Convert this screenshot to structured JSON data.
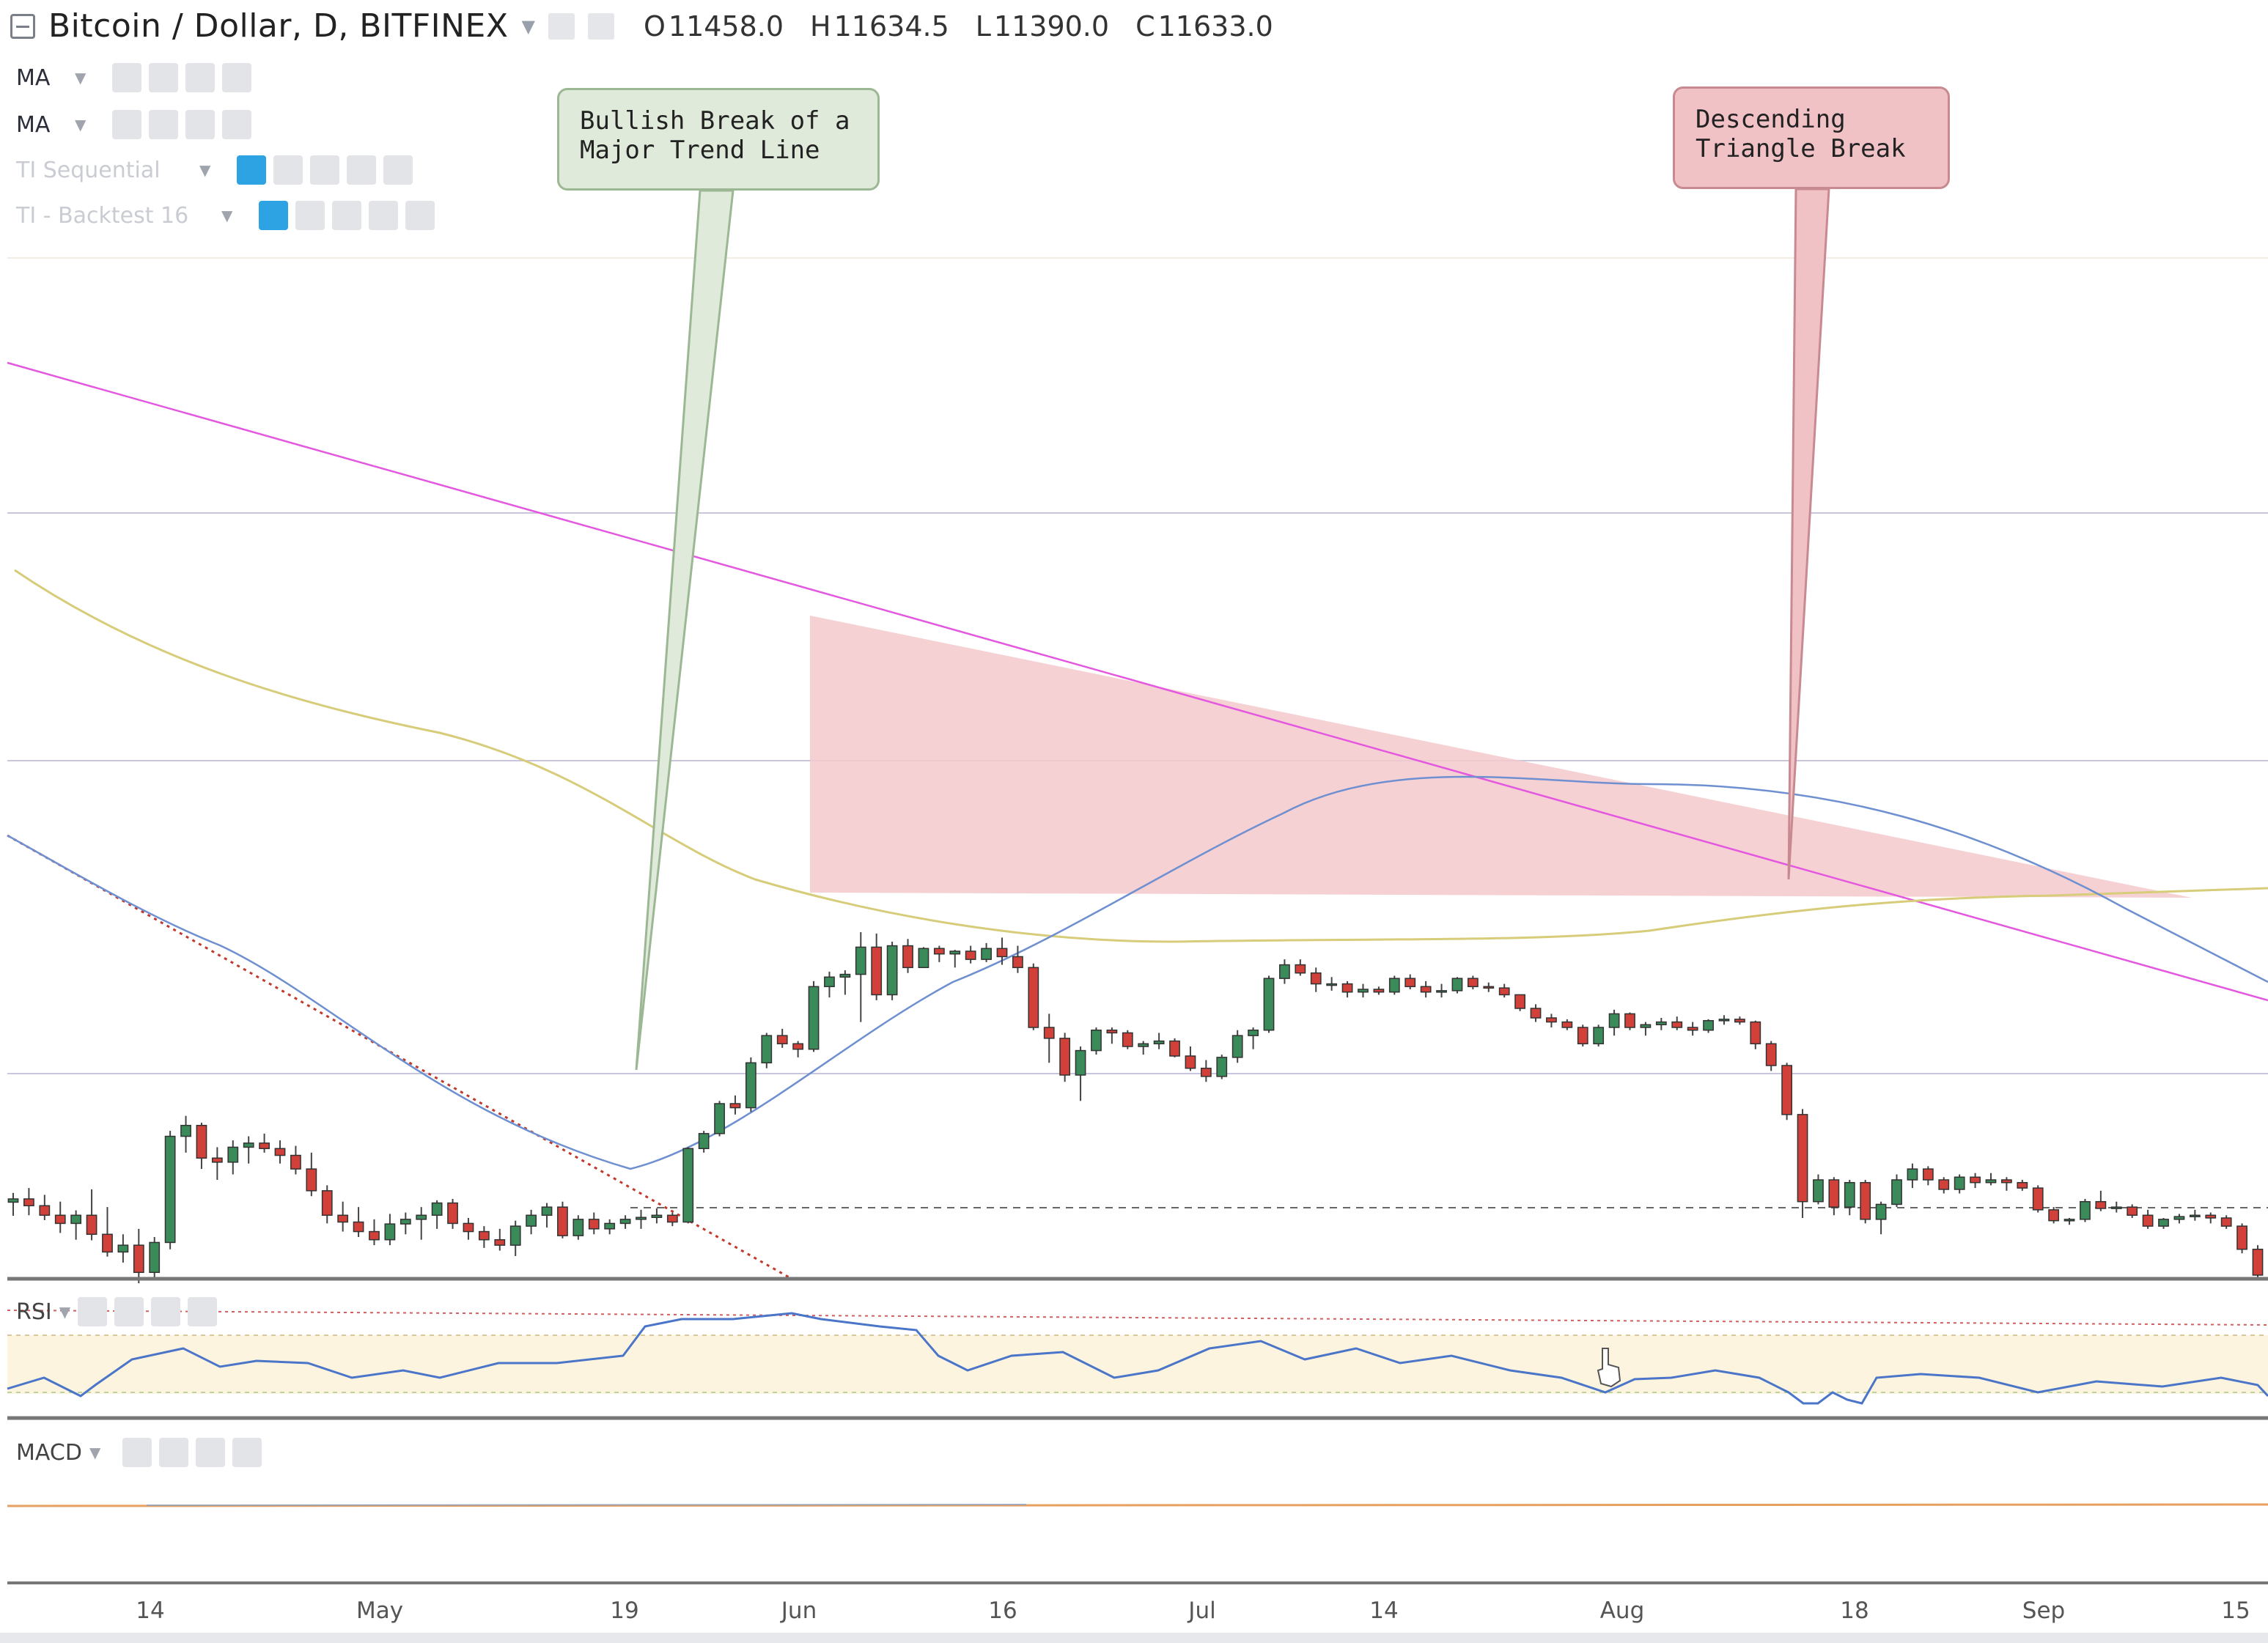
{
  "header": {
    "symbol_title": "Bitcoin / Dollar, D, BITFINEX",
    "ohlc": {
      "open_label": "O",
      "open": "11458.0",
      "high_label": "H",
      "high": "11634.5",
      "low_label": "L",
      "low": "11390.0",
      "close_label": "C",
      "close": "11633.0"
    }
  },
  "indicators": [
    {
      "name": "MA",
      "state": "active"
    },
    {
      "name": "MA",
      "state": "active"
    },
    {
      "name": "TI Sequential",
      "state": "faded"
    },
    {
      "name": "TI - Backtest 16",
      "state": "faded"
    }
  ],
  "annotations": {
    "bullish": {
      "line1": "Bullish Break of a",
      "line2": "Major Trend Line"
    },
    "descending": {
      "line1": "Descending",
      "line2": "Triangle Break"
    }
  },
  "panes": {
    "rsi_label": "RSI",
    "macd_label": "MACD"
  },
  "x_axis_ticks": [
    "14",
    "May",
    "19",
    "Jun",
    "16",
    "Jul",
    "14",
    "Aug",
    "18",
    "Sep",
    "15"
  ],
  "colors": {
    "up": "#3a8a5a",
    "down": "#d2403a",
    "triangle_fill": "#f4c9cc",
    "trend_magenta": "#e458e0",
    "ma_blue": "#6e8fd0",
    "ma_yellow": "#d7cc7a",
    "rsi_line": "#4a75c8",
    "rsi_band": "#fdf4df"
  },
  "chart_data": {
    "type": "candlestick",
    "x_start": "2017-04-07",
    "x_end": "2017-09-16",
    "note": "",
    "ylim": [
      2250,
      4700
    ],
    "ohlc": [
      [
        2518,
        2552,
        2468,
        2530
      ],
      [
        2530,
        2570,
        2470,
        2505
      ],
      [
        2505,
        2545,
        2452,
        2470
      ],
      [
        2470,
        2520,
        2405,
        2440
      ],
      [
        2440,
        2488,
        2380,
        2470
      ],
      [
        2470,
        2565,
        2378,
        2400
      ],
      [
        2400,
        2500,
        2318,
        2335
      ],
      [
        2335,
        2400,
        2296,
        2360
      ],
      [
        2360,
        2420,
        2220,
        2260
      ],
      [
        2260,
        2390,
        2230,
        2370
      ],
      [
        2370,
        2780,
        2345,
        2760
      ],
      [
        2760,
        2835,
        2700,
        2800
      ],
      [
        2800,
        2810,
        2640,
        2680
      ],
      [
        2680,
        2720,
        2600,
        2665
      ],
      [
        2665,
        2745,
        2620,
        2720
      ],
      [
        2720,
        2760,
        2660,
        2735
      ],
      [
        2735,
        2770,
        2700,
        2715
      ],
      [
        2715,
        2745,
        2660,
        2690
      ],
      [
        2690,
        2725,
        2620,
        2640
      ],
      [
        2640,
        2700,
        2540,
        2560
      ],
      [
        2560,
        2580,
        2440,
        2470
      ],
      [
        2470,
        2520,
        2410,
        2445
      ],
      [
        2445,
        2500,
        2390,
        2410
      ],
      [
        2410,
        2455,
        2360,
        2380
      ],
      [
        2380,
        2475,
        2360,
        2438
      ],
      [
        2438,
        2480,
        2400,
        2455
      ],
      [
        2455,
        2500,
        2380,
        2470
      ],
      [
        2470,
        2525,
        2420,
        2515
      ],
      [
        2515,
        2530,
        2420,
        2440
      ],
      [
        2440,
        2460,
        2380,
        2410
      ],
      [
        2410,
        2430,
        2350,
        2380
      ],
      [
        2380,
        2420,
        2340,
        2360
      ],
      [
        2360,
        2450,
        2320,
        2430
      ],
      [
        2430,
        2490,
        2400,
        2470
      ],
      [
        2470,
        2515,
        2425,
        2500
      ],
      [
        2500,
        2520,
        2385,
        2395
      ],
      [
        2395,
        2470,
        2380,
        2455
      ],
      [
        2455,
        2480,
        2400,
        2420
      ],
      [
        2420,
        2455,
        2400,
        2440
      ],
      [
        2440,
        2470,
        2420,
        2455
      ],
      [
        2455,
        2490,
        2420,
        2462
      ],
      [
        2462,
        2495,
        2440,
        2470
      ],
      [
        2470,
        2480,
        2430,
        2445
      ],
      [
        2445,
        2720,
        2440,
        2715
      ],
      [
        2715,
        2780,
        2700,
        2770
      ],
      [
        2770,
        2890,
        2760,
        2880
      ],
      [
        2880,
        2910,
        2840,
        2865
      ],
      [
        2865,
        3050,
        2850,
        3030
      ],
      [
        3030,
        3140,
        3010,
        3130
      ],
      [
        3130,
        3155,
        3085,
        3100
      ],
      [
        3100,
        3110,
        3050,
        3080
      ],
      [
        3080,
        3330,
        3070,
        3310
      ],
      [
        3310,
        3365,
        3270,
        3345
      ],
      [
        3345,
        3370,
        3280,
        3355
      ],
      [
        3355,
        3510,
        3180,
        3455
      ],
      [
        3455,
        3505,
        3260,
        3280
      ],
      [
        3280,
        3475,
        3260,
        3460
      ],
      [
        3460,
        3485,
        3360,
        3380
      ],
      [
        3380,
        3455,
        3380,
        3450
      ],
      [
        3450,
        3460,
        3400,
        3430
      ],
      [
        3430,
        3445,
        3380,
        3440
      ],
      [
        3440,
        3460,
        3395,
        3410
      ],
      [
        3410,
        3470,
        3400,
        3450
      ],
      [
        3450,
        3490,
        3390,
        3420
      ],
      [
        3420,
        3460,
        3360,
        3380
      ],
      [
        3380,
        3395,
        3150,
        3160
      ],
      [
        3160,
        3210,
        3030,
        3120
      ],
      [
        3120,
        3140,
        2960,
        2985
      ],
      [
        2985,
        3090,
        2890,
        3075
      ],
      [
        3075,
        3160,
        3060,
        3150
      ],
      [
        3150,
        3160,
        3100,
        3140
      ],
      [
        3140,
        3150,
        3080,
        3090
      ],
      [
        3090,
        3110,
        3060,
        3100
      ],
      [
        3100,
        3140,
        3080,
        3110
      ],
      [
        3110,
        3120,
        3050,
        3055
      ],
      [
        3055,
        3090,
        3000,
        3010
      ],
      [
        3010,
        3040,
        2960,
        2980
      ],
      [
        2980,
        3060,
        2970,
        3050
      ],
      [
        3050,
        3150,
        3030,
        3130
      ],
      [
        3130,
        3160,
        3080,
        3150
      ],
      [
        3150,
        3350,
        3140,
        3340
      ],
      [
        3340,
        3410,
        3320,
        3390
      ],
      [
        3390,
        3410,
        3350,
        3360
      ],
      [
        3360,
        3380,
        3290,
        3320
      ],
      [
        3320,
        3345,
        3295,
        3320
      ],
      [
        3320,
        3330,
        3270,
        3290
      ],
      [
        3290,
        3320,
        3270,
        3300
      ],
      [
        3300,
        3310,
        3280,
        3290
      ],
      [
        3290,
        3350,
        3280,
        3340
      ],
      [
        3340,
        3355,
        3300,
        3310
      ],
      [
        3310,
        3330,
        3270,
        3290
      ],
      [
        3290,
        3320,
        3270,
        3295
      ],
      [
        3295,
        3345,
        3285,
        3340
      ],
      [
        3340,
        3350,
        3300,
        3310
      ],
      [
        3310,
        3325,
        3290,
        3305
      ],
      [
        3305,
        3320,
        3270,
        3280
      ],
      [
        3280,
        3270,
        3220,
        3230
      ],
      [
        3230,
        3245,
        3180,
        3195
      ],
      [
        3195,
        3210,
        3160,
        3180
      ],
      [
        3180,
        3190,
        3150,
        3160
      ],
      [
        3160,
        3170,
        3090,
        3100
      ],
      [
        3100,
        3170,
        3090,
        3160
      ],
      [
        3160,
        3225,
        3130,
        3210
      ],
      [
        3210,
        3215,
        3150,
        3160
      ],
      [
        3160,
        3180,
        3130,
        3170
      ],
      [
        3170,
        3195,
        3150,
        3180
      ],
      [
        3180,
        3200,
        3150,
        3160
      ],
      [
        3160,
        3180,
        3130,
        3150
      ],
      [
        3150,
        3190,
        3140,
        3185
      ],
      [
        3185,
        3205,
        3170,
        3190
      ],
      [
        3190,
        3200,
        3170,
        3180
      ],
      [
        3180,
        3185,
        3080,
        3100
      ],
      [
        3100,
        3110,
        3000,
        3020
      ],
      [
        3020,
        3030,
        2820,
        2840
      ],
      [
        2840,
        2860,
        2460,
        2520
      ],
      [
        2520,
        2620,
        2510,
        2600
      ],
      [
        2600,
        2610,
        2470,
        2500
      ],
      [
        2500,
        2600,
        2470,
        2590
      ],
      [
        2590,
        2600,
        2440,
        2455
      ],
      [
        2455,
        2520,
        2400,
        2510
      ],
      [
        2510,
        2620,
        2500,
        2600
      ],
      [
        2600,
        2660,
        2570,
        2640
      ],
      [
        2640,
        2650,
        2580,
        2600
      ],
      [
        2600,
        2610,
        2550,
        2565
      ],
      [
        2565,
        2620,
        2550,
        2610
      ],
      [
        2610,
        2625,
        2570,
        2590
      ],
      [
        2590,
        2625,
        2580,
        2600
      ],
      [
        2600,
        2610,
        2560,
        2590
      ],
      [
        2590,
        2600,
        2560,
        2570
      ],
      [
        2570,
        2580,
        2480,
        2490
      ],
      [
        2490,
        2500,
        2440,
        2450
      ],
      [
        2450,
        2460,
        2435,
        2455
      ],
      [
        2455,
        2530,
        2445,
        2520
      ],
      [
        2520,
        2560,
        2485,
        2495
      ],
      [
        2495,
        2520,
        2480,
        2500
      ],
      [
        2500,
        2510,
        2460,
        2470
      ],
      [
        2470,
        2490,
        2420,
        2430
      ],
      [
        2430,
        2460,
        2420,
        2455
      ],
      [
        2455,
        2475,
        2440,
        2465
      ],
      [
        2465,
        2490,
        2450,
        2470
      ],
      [
        2470,
        2480,
        2440,
        2460
      ],
      [
        2460,
        2470,
        2420,
        2430
      ],
      [
        2430,
        2440,
        2330,
        2345
      ],
      [
        2345,
        2360,
        2230,
        2250
      ]
    ]
  }
}
